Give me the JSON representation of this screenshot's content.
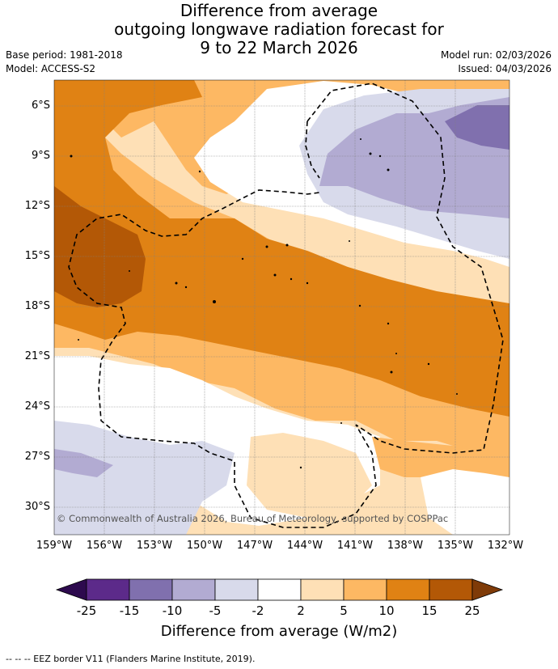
{
  "title": {
    "line1": "Difference from average",
    "line2": "outgoing longwave radiation forecast for",
    "line3": "9 to 22 March 2026"
  },
  "meta": {
    "base_period": "Base period: 1981-2018",
    "model": "Model: ACCESS-S2",
    "model_run": "Model run: 02/03/2026",
    "issued": "Issued: 04/03/2026"
  },
  "map": {
    "lat_labels": [
      "6°S",
      "9°S",
      "12°S",
      "15°S",
      "18°S",
      "21°S",
      "24°S",
      "27°S",
      "30°S"
    ],
    "lon_labels": [
      "159°W",
      "156°W",
      "153°W",
      "150°W",
      "147°W",
      "144°W",
      "141°W",
      "138°W",
      "135°W",
      "132°W"
    ],
    "copyright": "© Commonwealth of Australia 2026, Bureau of Meteorology, supported by COSPPac"
  },
  "colorbar": {
    "ticks": [
      "-25",
      "-15",
      "-10",
      "-5",
      "-2",
      "2",
      "5",
      "10",
      "15",
      "25"
    ],
    "colors": [
      "#2d0a4e",
      "#5c2a8a",
      "#8070ae",
      "#b2abd2",
      "#d8daeb",
      "#ffffff",
      "#fee0b6",
      "#fdb863",
      "#e08214",
      "#b35806",
      "#7f3b08"
    ],
    "label": "Difference from average (W/m2)"
  },
  "footer": "-- -- -- EEZ border V11 (Flanders Marine Institute, 2019)."
}
